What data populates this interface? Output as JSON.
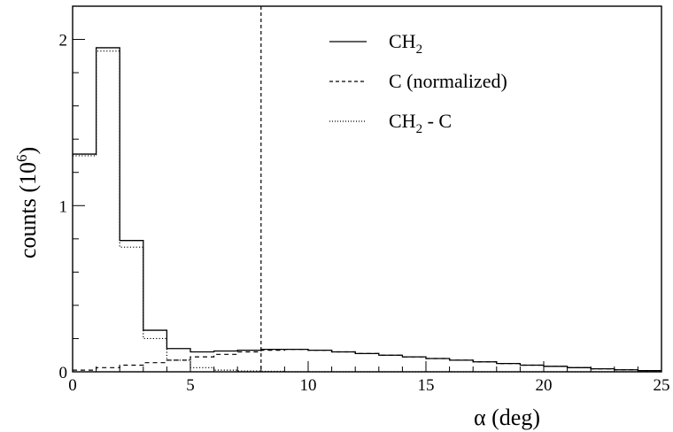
{
  "chart_data": {
    "type": "histogram",
    "xlabel": "α (deg)",
    "ylabel_main": "counts (10",
    "ylabel_exp": "6",
    "ylabel_close": ")",
    "xlim": [
      0,
      25
    ],
    "ylim": [
      0,
      2.2
    ],
    "x_ticks": [
      0,
      5,
      10,
      15,
      20,
      25
    ],
    "y_ticks": [
      0,
      1,
      2
    ],
    "bin_edges": [
      0,
      1,
      2,
      3,
      4,
      5,
      6,
      7,
      8,
      9,
      10,
      11,
      12,
      13,
      14,
      15,
      16,
      17,
      18,
      19,
      20,
      21,
      22,
      23,
      24,
      25
    ],
    "cut_line_x": 8,
    "legend": {
      "position": "top-right",
      "entries": [
        {
          "key": "ch2",
          "main": "CH",
          "sub": "2",
          "rest": "",
          "style": "solid"
        },
        {
          "key": "c",
          "main": "C (normalized)",
          "sub": "",
          "rest": "",
          "style": "dashed"
        },
        {
          "key": "diff",
          "main": "CH",
          "sub": "2",
          "rest": " - C",
          "style": "dotted"
        }
      ]
    },
    "series": [
      {
        "key": "ch2",
        "style": "solid",
        "values": [
          1.31,
          1.95,
          0.79,
          0.25,
          0.14,
          0.12,
          0.125,
          0.13,
          0.135,
          0.135,
          0.13,
          0.12,
          0.11,
          0.1,
          0.09,
          0.08,
          0.07,
          0.06,
          0.05,
          0.04,
          0.033,
          0.025,
          0.018,
          0.012,
          0.007
        ]
      },
      {
        "key": "c",
        "style": "dashed",
        "values": [
          0.01,
          0.025,
          0.04,
          0.055,
          0.07,
          0.09,
          0.105,
          0.12,
          0.13,
          0.135,
          0.13,
          0.12,
          0.11,
          0.1,
          0.09,
          0.08,
          0.07,
          0.06,
          0.05,
          0.04,
          0.033,
          0.025,
          0.018,
          0.012,
          0.007
        ]
      },
      {
        "key": "diff",
        "style": "dotted",
        "values": [
          1.3,
          1.93,
          0.75,
          0.2,
          0.07,
          0.025,
          0.01,
          0.005,
          0.003,
          0,
          0,
          0,
          0,
          0,
          0,
          0,
          0,
          0,
          0,
          0,
          0,
          0,
          0,
          0,
          0
        ]
      }
    ]
  }
}
